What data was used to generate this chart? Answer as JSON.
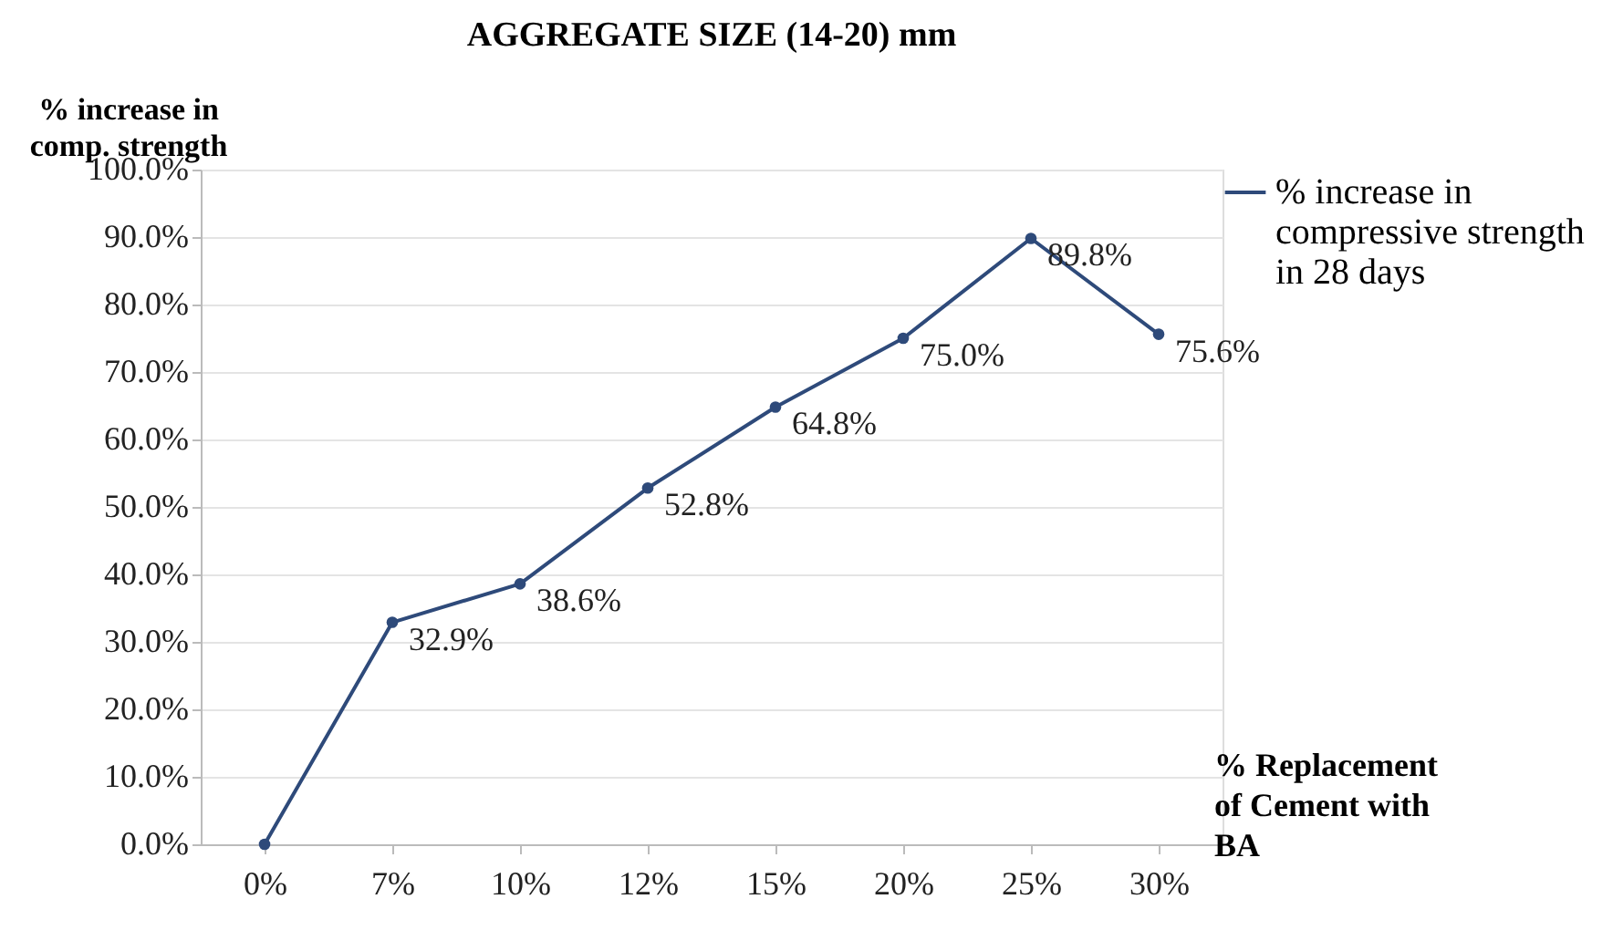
{
  "chart_data": {
    "type": "line",
    "title": "AGGREGATE SIZE (14-20) mm",
    "xlabel": "% Replacement of Cement with BA",
    "ylabel": "% increase in comp. strength",
    "categories": [
      "0%",
      "7%",
      "10%",
      "12%",
      "15%",
      "20%",
      "25%",
      "30%"
    ],
    "series": [
      {
        "name": "% increase in compressive strength in 28 days",
        "color": "#2e4a7a",
        "values": [
          0,
          32.9,
          38.6,
          52.8,
          64.8,
          75.0,
          89.8,
          75.6
        ],
        "value_labels": [
          null,
          "32.9%",
          "38.6%",
          "52.8%",
          "64.8%",
          "75.0%",
          "89.8%",
          "75.6%"
        ]
      }
    ],
    "ylim": [
      0,
      100
    ],
    "yticks": [
      {
        "value": 0,
        "label": "0.0%"
      },
      {
        "value": 10,
        "label": "10.0%"
      },
      {
        "value": 20,
        "label": "20.0%"
      },
      {
        "value": 30,
        "label": "30.0%"
      },
      {
        "value": 40,
        "label": "40.0%"
      },
      {
        "value": 50,
        "label": "50.0%"
      },
      {
        "value": 60,
        "label": "60.0%"
      },
      {
        "value": 70,
        "label": "70.0%"
      },
      {
        "value": 80,
        "label": "80.0%"
      },
      {
        "value": 90,
        "label": "90.0%"
      },
      {
        "value": 100,
        "label": "100.0%"
      }
    ],
    "grid": "y",
    "legend": "right",
    "marker": "circle",
    "line_style": "solid"
  }
}
